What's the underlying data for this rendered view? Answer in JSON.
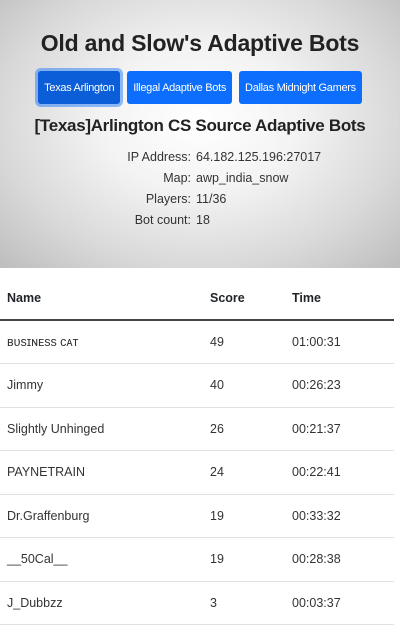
{
  "header": {
    "site_title": "Old and Slow's Adaptive Bots",
    "tabs": [
      {
        "label": "Texas Arlington",
        "active": true
      },
      {
        "label": "Illegal Adaptive Bots",
        "active": false
      },
      {
        "label": "Dallas Midnight Gamers",
        "active": false
      }
    ],
    "server_name": "[Texas]Arlington CS Source Adaptive Bots"
  },
  "server_info": {
    "ip_label": "IP Address:",
    "ip_value": "64.182.125.196:27017",
    "map_label": "Map:",
    "map_value": "awp_india_snow",
    "players_label": "Players:",
    "players_value": "11/36",
    "bots_label": "Bot count:",
    "bots_value": "18"
  },
  "table": {
    "columns": [
      "Name",
      "Score",
      "Time"
    ],
    "rows": [
      {
        "name": "ʙᴜsɪɴᴇss ᴄᴀᴛ",
        "score": "49",
        "time": "01:00:31"
      },
      {
        "name": "Jimmy",
        "score": "40",
        "time": "00:26:23"
      },
      {
        "name": "Slightly Unhinged",
        "score": "26",
        "time": "00:21:37"
      },
      {
        "name": "PAYNETRAIN",
        "score": "24",
        "time": "00:22:41"
      },
      {
        "name": "Dr.Graffenburg",
        "score": "19",
        "time": "00:33:32"
      },
      {
        "name": "__50Cal__",
        "score": "19",
        "time": "00:28:38"
      },
      {
        "name": "J_Dubbzz",
        "score": "3",
        "time": "00:03:37"
      }
    ]
  },
  "colors": {
    "button_primary": "#0d6efd",
    "header_border": "#444444",
    "row_border": "#dee2e6"
  }
}
